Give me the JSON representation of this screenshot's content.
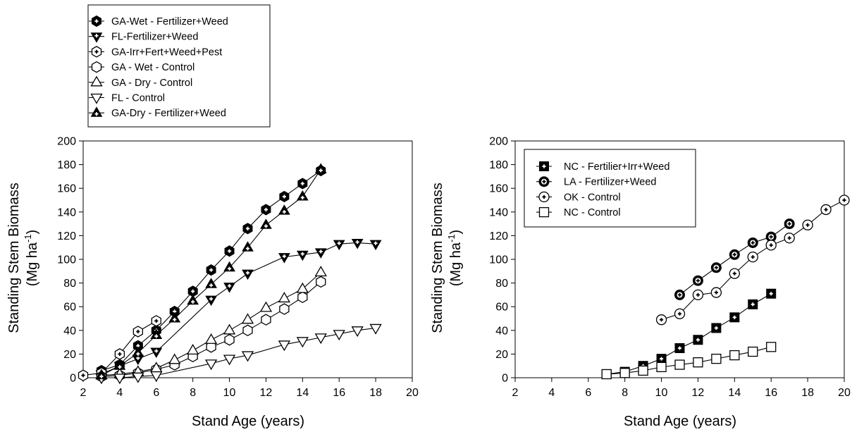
{
  "chart_data": [
    {
      "type": "line",
      "xlabel": "Stand Age (years)",
      "ylabel": "Standing Stem Biomass",
      "ylabel_unit": "(Mg ha",
      "ylabel_unit_sup": "-1",
      "ylabel_unit_close": ")",
      "xlim": [
        2,
        20
      ],
      "ylim": [
        0,
        200
      ],
      "xticks": [
        "2",
        "4",
        "6",
        "8",
        "10",
        "12",
        "14",
        "16",
        "18",
        "20"
      ],
      "yticks": [
        "0",
        "20",
        "40",
        "60",
        "80",
        "100",
        "120",
        "140",
        "160",
        "180",
        "200"
      ],
      "grid": false,
      "legend_position": "above plot, top-left",
      "series": [
        {
          "name": "GA-Wet - Fertilizer+Weed",
          "marker": "hexagon-filled-plus",
          "x": [
            3,
            4,
            5,
            6,
            7,
            8,
            9,
            10,
            11,
            12,
            13,
            14,
            15
          ],
          "y": [
            6,
            11,
            27,
            40,
            56,
            73,
            91,
            107,
            126,
            142,
            153,
            164,
            175
          ]
        },
        {
          "name": "FL-Fertilizer+Weed",
          "marker": "triangle-down-filled-plus",
          "x": [
            3,
            4,
            5,
            6,
            9,
            10,
            11,
            13,
            14,
            15,
            16,
            17,
            18
          ],
          "y": [
            3,
            10,
            16,
            22,
            66,
            77,
            88,
            102,
            104,
            106,
            113,
            114,
            113
          ]
        },
        {
          "name": "GA-Irr+Fert+Weed+Pest",
          "marker": "hexagon-open-plus",
          "x": [
            2,
            3,
            4,
            5,
            6
          ],
          "y": [
            2,
            4,
            20,
            39,
            48
          ]
        },
        {
          "name": "GA - Wet - Control",
          "marker": "hexagon-open",
          "x": [
            3,
            4,
            5,
            6,
            7,
            8,
            9,
            10,
            11,
            12,
            13,
            14,
            15
          ],
          "y": [
            1,
            2,
            4,
            7,
            11,
            18,
            26,
            32,
            40,
            49,
            58,
            68,
            81
          ]
        },
        {
          "name": "GA - Dry - Control",
          "marker": "triangle-up-open",
          "x": [
            3,
            4,
            5,
            6,
            7,
            8,
            9,
            10,
            11,
            12,
            13,
            14,
            15
          ],
          "y": [
            2,
            3,
            5,
            8,
            15,
            23,
            32,
            40,
            49,
            59,
            67,
            75,
            89
          ]
        },
        {
          "name": "FL - Control",
          "marker": "triangle-down-open",
          "x": [
            3,
            4,
            5,
            6,
            9,
            10,
            11,
            13,
            14,
            15,
            16,
            17,
            18
          ],
          "y": [
            0,
            0,
            1,
            2,
            12,
            16,
            19,
            28,
            31,
            34,
            37,
            40,
            42
          ]
        },
        {
          "name": "GA-Dry - Fertilizer+Weed",
          "marker": "triangle-up-filled-plus",
          "x": [
            3,
            4,
            5,
            6,
            7,
            8,
            9,
            10,
            11,
            12,
            13,
            14,
            15
          ],
          "y": [
            2,
            10,
            21,
            36,
            50,
            65,
            79,
            93,
            110,
            129,
            141,
            153,
            176
          ]
        }
      ]
    },
    {
      "type": "line",
      "xlabel": "Stand Age (years)",
      "ylabel": "Standing Stem Biomass",
      "ylabel_unit": "(Mg ha",
      "ylabel_unit_sup": "-1",
      "ylabel_unit_close": ")",
      "xlim": [
        2,
        20
      ],
      "ylim": [
        0,
        200
      ],
      "xticks": [
        "2",
        "4",
        "6",
        "8",
        "10",
        "12",
        "14",
        "16",
        "18",
        "20"
      ],
      "yticks": [
        "0",
        "20",
        "40",
        "60",
        "80",
        "100",
        "120",
        "140",
        "160",
        "180",
        "200"
      ],
      "grid": false,
      "legend_position": "top-left inside plot",
      "series": [
        {
          "name": "NC - Fertilier+Irr+Weed",
          "marker": "square-filled-plus",
          "x": [
            7,
            8,
            9,
            10,
            11,
            12,
            13,
            14,
            15,
            16
          ],
          "y": [
            3,
            5,
            10,
            16,
            25,
            32,
            42,
            51,
            62,
            71
          ]
        },
        {
          "name": "LA - Fertilizer+Weed",
          "marker": "circle-filled-plus",
          "x": [
            11,
            12,
            13,
            14,
            15,
            16,
            17
          ],
          "y": [
            70,
            82,
            93,
            104,
            114,
            119,
            130
          ]
        },
        {
          "name": "OK - Control",
          "marker": "circle-open-plus",
          "x": [
            10,
            11,
            12,
            13,
            14,
            15,
            16,
            17,
            18,
            19,
            20
          ],
          "y": [
            49,
            54,
            70,
            72,
            88,
            102,
            112,
            118,
            129,
            142,
            150
          ]
        },
        {
          "name": "NC - Control",
          "marker": "square-open",
          "x": [
            7,
            8,
            9,
            10,
            11,
            12,
            13,
            14,
            15,
            16
          ],
          "y": [
            3,
            4,
            6,
            9,
            11,
            13,
            16,
            19,
            22,
            26
          ]
        }
      ]
    }
  ]
}
